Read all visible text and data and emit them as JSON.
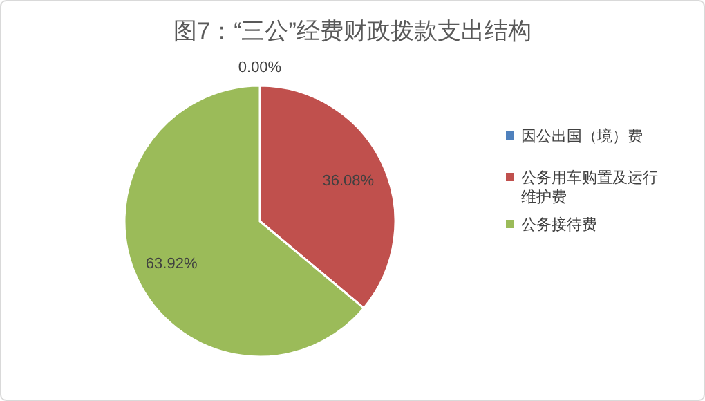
{
  "chart_data": {
    "type": "pie",
    "title": "图7：“三公”经费财政拨款支出结构",
    "categories": [
      "因公出国（境）费",
      "公务用车购置及运行维护费",
      "公务接待费"
    ],
    "values": [
      0.0,
      36.08,
      63.92
    ],
    "colors": [
      "#4f81bd",
      "#c0504d",
      "#9bbb59"
    ],
    "value_labels": [
      "0.00%",
      "36.08%",
      "63.92%"
    ],
    "legend": "right"
  }
}
